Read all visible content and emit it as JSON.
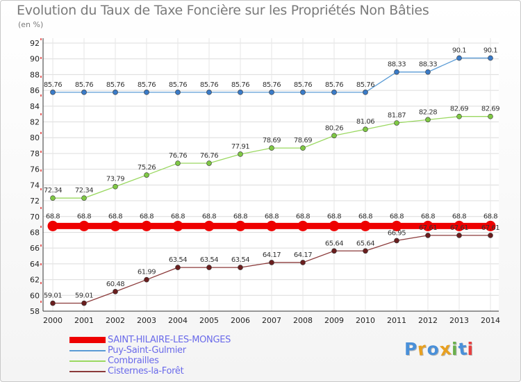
{
  "header": {
    "title": "Evolution du Taux de Taxe Foncière sur les Propriétés Non Bâties",
    "subtitle": "(en %)"
  },
  "logo": {
    "text": "Proxiti",
    "letters": [
      "P",
      "r",
      "o",
      "x",
      "i",
      "t",
      "i"
    ],
    "colors": [
      "#4a90d9",
      "#e8a020",
      "#4a90d9",
      "#e8a020",
      "#6ab04c",
      "#4a90d9",
      "#e84040"
    ]
  },
  "chart_data": {
    "type": "line",
    "x": [
      "2000",
      "2001",
      "2002",
      "2003",
      "2004",
      "2005",
      "2006",
      "2007",
      "2008",
      "2009",
      "2010",
      "2011",
      "2012",
      "2013",
      "2014"
    ],
    "ylim": [
      58,
      92
    ],
    "yticks": [
      58,
      60,
      62,
      64,
      66,
      68,
      70,
      72,
      74,
      76,
      78,
      80,
      82,
      84,
      86,
      88,
      90,
      92
    ],
    "grid": true,
    "legend_position": "bottom-left",
    "series": [
      {
        "name": "SAINT-HILAIRE-LES-MONGES",
        "color": "#ee0000",
        "emphasis": true,
        "values": [
          68.8,
          68.8,
          68.8,
          68.8,
          68.8,
          68.8,
          68.8,
          68.8,
          68.8,
          68.8,
          68.8,
          68.8,
          68.8,
          68.8,
          68.8
        ],
        "labels": [
          "68.8",
          "68.8",
          "68.8",
          "68.8",
          "68.8",
          "68.8",
          "68.8",
          "68.8",
          "68.8",
          "68.8",
          "68.8",
          "68.8",
          "68.8",
          "68.8",
          "68.8"
        ]
      },
      {
        "name": "Puy-Saint-Gulmier",
        "color": "#5a9bd5",
        "point_color": "#3a7bc8",
        "values": [
          85.76,
          85.76,
          85.76,
          85.76,
          85.76,
          85.76,
          85.76,
          85.76,
          85.76,
          85.76,
          85.76,
          88.33,
          88.33,
          90.1,
          90.1
        ],
        "labels": [
          "85.76",
          "85.76",
          "85.76",
          "85.76",
          "85.76",
          "85.76",
          "85.76",
          "85.76",
          "85.76",
          "85.76",
          "85.76",
          "88.33",
          "88.33",
          "90.1",
          "90.1"
        ]
      },
      {
        "name": "Combrailles",
        "color": "#9ad860",
        "point_color": "#7fc844",
        "values": [
          72.34,
          72.34,
          73.79,
          75.26,
          76.76,
          76.76,
          77.91,
          78.69,
          78.69,
          80.26,
          81.06,
          81.87,
          82.28,
          82.69,
          82.69
        ],
        "labels": [
          "72.34",
          "72.34",
          "73.79",
          "75.26",
          "76.76",
          "76.76",
          "77.91",
          "78.69",
          "78.69",
          "80.26",
          "81.06",
          "81.87",
          "82.28",
          "82.69",
          "82.69"
        ]
      },
      {
        "name": "Cisternes-la-Forêt",
        "color": "#8b3a3a",
        "point_color": "#6a1e1e",
        "values": [
          59.01,
          59.01,
          60.48,
          61.99,
          63.54,
          63.54,
          63.54,
          64.17,
          64.17,
          65.64,
          65.64,
          66.95,
          67.61,
          67.61,
          67.61
        ],
        "labels": [
          "59.01",
          "59.01",
          "60.48",
          "61.99",
          "63.54",
          "63.54",
          "63.54",
          "64.17",
          "64.17",
          "65.64",
          "65.64",
          "66.95",
          "67.61",
          "67.61",
          "67.61"
        ]
      }
    ]
  }
}
